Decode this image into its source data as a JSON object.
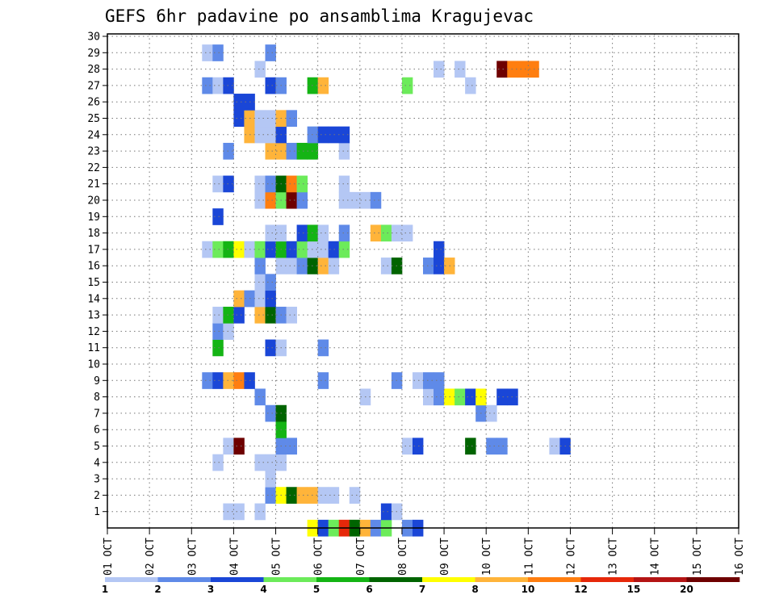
{
  "chart_data": {
    "type": "heatmap",
    "title": "GEFS 6hr padavine po ansamblima Kragujevac",
    "x_tick_labels": [
      "01 OCT",
      "02 OCT",
      "03 OCT",
      "04 OCT",
      "05 OCT",
      "06 OCT",
      "07 OCT",
      "08 OCT",
      "09 OCT",
      "10 OCT",
      "11 OCT",
      "12 OCT",
      "13 OCT",
      "14 OCT",
      "15 OCT",
      "16 OCT"
    ],
    "y_tick_labels": [
      "1",
      "2",
      "3",
      "4",
      "5",
      "6",
      "7",
      "8",
      "9",
      "10",
      "11",
      "12",
      "13",
      "14",
      "15",
      "16",
      "17",
      "18",
      "19",
      "20",
      "21",
      "22",
      "23",
      "24",
      "25",
      "26",
      "27",
      "28",
      "29",
      "30"
    ],
    "y_range": [
      0,
      30
    ],
    "x_range_days": [
      0,
      15
    ],
    "steps_per_day": 4,
    "grid": "dotted",
    "legend_position": "bottom",
    "colorbar": {
      "colors": [
        "#b4c7f4",
        "#5f8ae8",
        "#1a46d7",
        "#6ceb5a",
        "#14b414",
        "#006400",
        "#ffff00",
        "#ffb43a",
        "#ff7e10",
        "#e6280a",
        "#b41414",
        "#6e0000"
      ],
      "labels": [
        "1",
        "2",
        "3",
        "4",
        "5",
        "6",
        "7",
        "8",
        "10",
        "12",
        "15",
        "20"
      ]
    },
    "rows": [
      {
        "y": 0,
        "cells": [
          [
            19,
            6
          ],
          [
            20,
            2
          ],
          [
            21,
            3
          ],
          [
            22,
            9
          ],
          [
            23,
            5
          ],
          [
            24,
            7
          ],
          [
            25,
            1
          ],
          [
            26,
            3
          ],
          [
            28,
            1
          ],
          [
            29,
            2
          ]
        ]
      },
      {
        "y": 1,
        "cells": [
          [
            11,
            0
          ],
          [
            12,
            0
          ],
          [
            14,
            0
          ],
          [
            26,
            2
          ],
          [
            27,
            0
          ]
        ]
      },
      {
        "y": 2,
        "cells": [
          [
            15,
            1
          ],
          [
            16,
            6
          ],
          [
            17,
            5
          ],
          [
            18,
            7
          ],
          [
            19,
            7
          ],
          [
            20,
            0
          ],
          [
            21,
            0
          ],
          [
            23,
            0
          ]
        ]
      },
      {
        "y": 3,
        "cells": [
          [
            15,
            0
          ]
        ]
      },
      {
        "y": 4,
        "cells": [
          [
            10,
            0
          ],
          [
            14,
            0
          ],
          [
            15,
            0
          ],
          [
            16,
            0
          ]
        ]
      },
      {
        "y": 5,
        "cells": [
          [
            11,
            0
          ],
          [
            12,
            11
          ],
          [
            16,
            1
          ],
          [
            17,
            1
          ],
          [
            28,
            0
          ],
          [
            29,
            2
          ],
          [
            34,
            5
          ],
          [
            36,
            1
          ],
          [
            37,
            1
          ],
          [
            42,
            0
          ],
          [
            43,
            2
          ]
        ]
      },
      {
        "y": 6,
        "cells": [
          [
            16,
            4
          ]
        ]
      },
      {
        "y": 7,
        "cells": [
          [
            15,
            1
          ],
          [
            16,
            5
          ],
          [
            35,
            1
          ],
          [
            36,
            0
          ]
        ]
      },
      {
        "y": 8,
        "cells": [
          [
            14,
            1
          ],
          [
            24,
            0
          ],
          [
            30,
            0
          ],
          [
            31,
            1
          ],
          [
            32,
            6
          ],
          [
            33,
            3
          ],
          [
            34,
            2
          ],
          [
            35,
            6
          ],
          [
            37,
            2
          ],
          [
            38,
            2
          ]
        ]
      },
      {
        "y": 9,
        "cells": [
          [
            9,
            1
          ],
          [
            10,
            2
          ],
          [
            11,
            7
          ],
          [
            12,
            8
          ],
          [
            13,
            2
          ],
          [
            20,
            1
          ],
          [
            27,
            1
          ],
          [
            29,
            0
          ],
          [
            30,
            1
          ],
          [
            31,
            1
          ]
        ]
      },
      {
        "y": 11,
        "cells": [
          [
            10,
            4
          ],
          [
            15,
            2
          ],
          [
            16,
            0
          ],
          [
            20,
            1
          ]
        ]
      },
      {
        "y": 12,
        "cells": [
          [
            10,
            1
          ],
          [
            11,
            0
          ]
        ]
      },
      {
        "y": 13,
        "cells": [
          [
            10,
            0
          ],
          [
            11,
            4
          ],
          [
            12,
            2
          ],
          [
            14,
            7
          ],
          [
            15,
            5
          ],
          [
            16,
            1
          ],
          [
            17,
            0
          ]
        ]
      },
      {
        "y": 14,
        "cells": [
          [
            12,
            7
          ],
          [
            13,
            1
          ],
          [
            14,
            0
          ],
          [
            15,
            2
          ]
        ]
      },
      {
        "y": 15,
        "cells": [
          [
            14,
            0
          ],
          [
            15,
            1
          ]
        ]
      },
      {
        "y": 16,
        "cells": [
          [
            14,
            1
          ],
          [
            16,
            0
          ],
          [
            17,
            0
          ],
          [
            18,
            1
          ],
          [
            19,
            5
          ],
          [
            20,
            7
          ],
          [
            21,
            0
          ],
          [
            26,
            0
          ],
          [
            27,
            5
          ],
          [
            30,
            1
          ],
          [
            31,
            2
          ],
          [
            32,
            7
          ]
        ]
      },
      {
        "y": 17,
        "cells": [
          [
            9,
            0
          ],
          [
            10,
            3
          ],
          [
            11,
            4
          ],
          [
            12,
            6
          ],
          [
            13,
            0
          ],
          [
            14,
            3
          ],
          [
            15,
            2
          ],
          [
            16,
            4
          ],
          [
            17,
            2
          ],
          [
            18,
            3
          ],
          [
            19,
            0
          ],
          [
            20,
            0
          ],
          [
            21,
            2
          ],
          [
            22,
            3
          ],
          [
            31,
            2
          ]
        ]
      },
      {
        "y": 18,
        "cells": [
          [
            15,
            0
          ],
          [
            16,
            0
          ],
          [
            18,
            2
          ],
          [
            19,
            4
          ],
          [
            20,
            0
          ],
          [
            22,
            1
          ],
          [
            25,
            7
          ],
          [
            26,
            3
          ],
          [
            27,
            0
          ],
          [
            28,
            0
          ]
        ]
      },
      {
        "y": 19,
        "cells": [
          [
            10,
            2
          ]
        ]
      },
      {
        "y": 20,
        "cells": [
          [
            14,
            0
          ],
          [
            15,
            8
          ],
          [
            16,
            3
          ],
          [
            17,
            11
          ],
          [
            18,
            1
          ],
          [
            22,
            0
          ],
          [
            23,
            0
          ],
          [
            24,
            0
          ],
          [
            25,
            1
          ]
        ]
      },
      {
        "y": 21,
        "cells": [
          [
            10,
            0
          ],
          [
            11,
            2
          ],
          [
            14,
            0
          ],
          [
            15,
            1
          ],
          [
            16,
            5
          ],
          [
            17,
            8
          ],
          [
            18,
            3
          ],
          [
            22,
            0
          ]
        ]
      },
      {
        "y": 23,
        "cells": [
          [
            11,
            1
          ],
          [
            15,
            7
          ],
          [
            16,
            7
          ],
          [
            17,
            1
          ],
          [
            18,
            4
          ],
          [
            19,
            4
          ],
          [
            22,
            0
          ]
        ]
      },
      {
        "y": 24,
        "cells": [
          [
            13,
            7
          ],
          [
            14,
            0
          ],
          [
            15,
            0
          ],
          [
            16,
            2
          ],
          [
            19,
            1
          ],
          [
            20,
            2
          ],
          [
            21,
            2
          ],
          [
            22,
            2
          ]
        ]
      },
      {
        "y": 25,
        "cells": [
          [
            12,
            2
          ],
          [
            13,
            7
          ],
          [
            14,
            0
          ],
          [
            15,
            0
          ],
          [
            16,
            7
          ],
          [
            17,
            1
          ]
        ]
      },
      {
        "y": 26,
        "cells": [
          [
            12,
            2
          ],
          [
            13,
            2
          ]
        ]
      },
      {
        "y": 27,
        "cells": [
          [
            9,
            1
          ],
          [
            10,
            0
          ],
          [
            11,
            2
          ],
          [
            15,
            2
          ],
          [
            16,
            1
          ],
          [
            19,
            4
          ],
          [
            20,
            7
          ],
          [
            28,
            3
          ],
          [
            34,
            0
          ]
        ]
      },
      {
        "y": 28,
        "cells": [
          [
            14,
            0
          ],
          [
            31,
            0
          ],
          [
            33,
            0
          ],
          [
            37,
            11
          ],
          [
            38,
            8
          ],
          [
            39,
            8
          ],
          [
            40,
            8
          ]
        ]
      },
      {
        "y": 29,
        "cells": [
          [
            9,
            0
          ],
          [
            10,
            1
          ],
          [
            15,
            1
          ]
        ]
      }
    ]
  }
}
